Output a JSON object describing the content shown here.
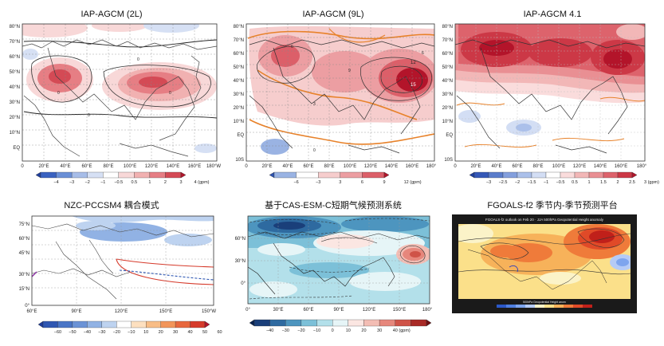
{
  "figure": {
    "panels": [
      {
        "id": "p1",
        "title": "IAP-AGCM (2L)",
        "lat_ticks": [
          "80°N",
          "70°N",
          "60°N",
          "50°N",
          "40°N",
          "30°N",
          "20°N",
          "10°N",
          "EQ"
        ],
        "lon_ticks": [
          "0",
          "20°E",
          "40°E",
          "60°E",
          "80°E",
          "100°E",
          "120°E",
          "140°E",
          "160°E",
          "180°W"
        ],
        "colorbar_ticks": [
          "−4",
          "−3",
          "−2",
          "−1",
          "−0.5",
          "0.5",
          "1",
          "2",
          "3",
          "4 (gpm)"
        ],
        "colorbar_colors": [
          "#1e3f9e",
          "#3a62c0",
          "#6a8fd6",
          "#a7bde8",
          "#d6e0f4",
          "#ffffff",
          "#f8d8d8",
          "#f1b1b1",
          "#e67e84",
          "#d44a55",
          "#b3142a"
        ],
        "contour_labels": [
          "0",
          "0",
          "0",
          "0"
        ]
      },
      {
        "id": "p2",
        "title": "IAP-AGCM (9L)",
        "lat_ticks": [
          "80°N",
          "70°N",
          "60°N",
          "50°N",
          "40°N",
          "30°N",
          "20°N",
          "10°N",
          "EQ",
          "10S"
        ],
        "lon_ticks": [
          "0",
          "20°E",
          "40°E",
          "60°E",
          "80°E",
          "100°E",
          "120°E",
          "140°E",
          "160°E",
          "180°"
        ],
        "colorbar_ticks": [
          "−6",
          "−3",
          "3",
          "6",
          "9",
          "12 (gpm)"
        ],
        "colorbar_colors": [
          "#2d52b0",
          "#9ab3e3",
          "#ffffff",
          "#f6cdcd",
          "#ec9ea2",
          "#dc5f69",
          "#b3142a"
        ],
        "contour_labels": [
          "6",
          "9",
          "12",
          "15",
          "3",
          "6",
          "0"
        ]
      },
      {
        "id": "p3",
        "title": "IAP-AGCM 4.1",
        "lat_ticks": [
          "80°N",
          "70°N",
          "60°N",
          "50°N",
          "40°N",
          "30°N",
          "20°N",
          "10°N",
          "EQ",
          "10S"
        ],
        "lon_ticks": [
          "0",
          "20°E",
          "40°E",
          "60°E",
          "80°E",
          "100°E",
          "120°E",
          "140°E",
          "160°E",
          "180°"
        ],
        "colorbar_ticks": [
          "−3",
          "−2.5",
          "−2",
          "−1.5",
          "−1",
          "−0.5",
          "0.5",
          "1",
          "1.5",
          "2",
          "2.5",
          "3 (gpm)"
        ],
        "colorbar_colors": [
          "#1e3f9e",
          "#3558b7",
          "#5a7ccb",
          "#839fdd",
          "#abc0ea",
          "#d3def4",
          "#ffffff",
          "#fadcdc",
          "#f2b7b7",
          "#e98f93",
          "#dd636c",
          "#cc3846",
          "#b3142a"
        ]
      },
      {
        "id": "p4",
        "title": "NZC-PCCSM4 耦合模式",
        "lat_ticks": [
          "75°N",
          "60°N",
          "45°N",
          "30°N",
          "15°N",
          "0°"
        ],
        "lon_ticks": [
          "60°E",
          "90°E",
          "120°E",
          "150°E",
          "150°W"
        ],
        "colorbar_ticks": [
          "−60",
          "−50",
          "−40",
          "−30",
          "−20",
          "−10",
          "10",
          "20",
          "30",
          "40",
          "50",
          "60 (gpm)"
        ],
        "colorbar_colors": [
          "#1d3c9a",
          "#2f57b2",
          "#4a75c6",
          "#6b93d6",
          "#91b2e4",
          "#bed3f0",
          "#ffffff",
          "#fde0c0",
          "#f8bd86",
          "#f2955a",
          "#e8683e",
          "#d63b2c",
          "#b3142a"
        ]
      },
      {
        "id": "p5",
        "title": "基于CAS-ESM-C短期气候预测系统",
        "lat_ticks": [
          "60°N",
          "30°N",
          "0°"
        ],
        "lon_ticks": [
          "0°",
          "30°E",
          "60°E",
          "90°E",
          "120°E",
          "150°E",
          "180°"
        ],
        "colorbar_ticks": [
          "−40",
          "−30",
          "−20",
          "−10",
          "0",
          "10",
          "20",
          "30",
          "40 (gpm)"
        ],
        "colorbar_colors": [
          "#08214f",
          "#1a3f7a",
          "#2e6aa0",
          "#4d95bf",
          "#7cc0d8",
          "#b3e0ea",
          "#e6f5f7",
          "#fbe6e2",
          "#f3bdb4",
          "#e6877c",
          "#cf5348",
          "#a92a26",
          "#6e0f12"
        ]
      },
      {
        "id": "p6",
        "title": "FGOALS-f2 季节内-季节预测平台",
        "header": "FGOALS-f2 outlook on Feb 20 · JJA 500hPa Geopotential Height anomaly",
        "cbar_label": "500hPa Geopotential Height anom",
        "colorbar_colors": [
          "#2b58c8",
          "#4f7fe0",
          "#7ea5ee",
          "#b5cbf6",
          "#fbf3c8",
          "#fbe08a",
          "#f7b25a",
          "#ef7b3a",
          "#e04a28",
          "#c0201a"
        ]
      }
    ]
  }
}
